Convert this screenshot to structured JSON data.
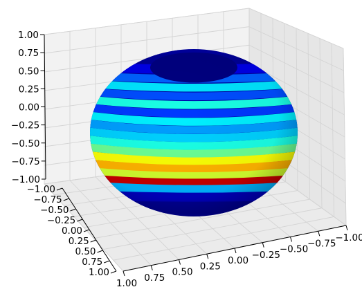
{
  "chart_data": {
    "type": "surface",
    "surface_shape": "sphere",
    "colormap": "jet",
    "radius": 1.0,
    "xlim": [
      -1.0,
      1.0
    ],
    "ylim": [
      -1.0,
      1.0
    ],
    "zlim": [
      -1.0,
      1.0
    ],
    "grid": true,
    "view": {
      "elev": 30,
      "azim": 45
    },
    "z_ticks": [
      "1.00",
      "0.75",
      "0.50",
      "0.25",
      "0.00",
      "−0.25",
      "−0.50",
      "−0.75",
      "−1.00"
    ],
    "y_ticks": [
      "−1.00",
      "−0.75",
      "−0.50",
      "−0.25",
      "0.00",
      "0.25",
      "0.50",
      "0.75",
      "1.00"
    ],
    "x_ticks": [
      "1.00",
      "0.75",
      "0.50",
      "0.25",
      "0.00",
      "−0.25",
      "−0.50",
      "−0.75",
      "−1.00"
    ],
    "surface_bands": [
      {
        "z": 0.95,
        "value": 0.02
      },
      {
        "z": 0.82,
        "value": 0.1
      },
      {
        "z": 0.72,
        "value": 0.22
      },
      {
        "z": 0.62,
        "value": 0.35
      },
      {
        "z": 0.52,
        "value": 0.2
      },
      {
        "z": 0.42,
        "value": 0.4
      },
      {
        "z": 0.32,
        "value": 0.18
      },
      {
        "z": 0.22,
        "value": 0.36
      },
      {
        "z": 0.12,
        "value": 0.28
      },
      {
        "z": 0.02,
        "value": 0.33
      },
      {
        "z": -0.08,
        "value": 0.4
      },
      {
        "z": -0.18,
        "value": 0.48
      },
      {
        "z": -0.28,
        "value": 0.62
      },
      {
        "z": -0.38,
        "value": 0.7
      },
      {
        "z": -0.48,
        "value": 0.58
      },
      {
        "z": -0.56,
        "value": 0.93
      },
      {
        "z": -0.66,
        "value": 0.3
      },
      {
        "z": -0.78,
        "value": 0.06
      },
      {
        "z": -0.92,
        "value": 0.02
      }
    ]
  }
}
